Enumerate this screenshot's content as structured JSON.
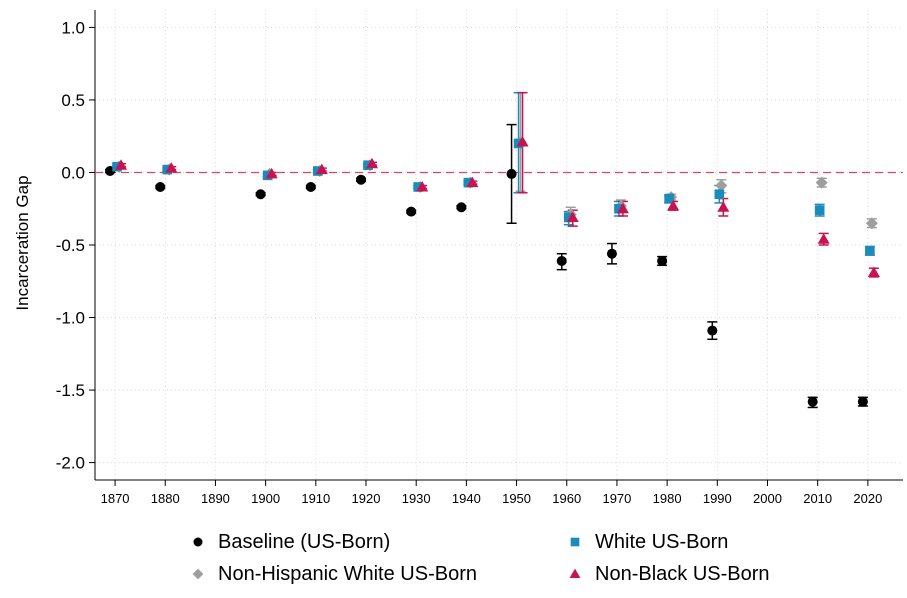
{
  "chart_data": {
    "type": "scatter",
    "title": "",
    "xlabel": "",
    "ylabel": "Incarceration Gap",
    "xlim": [
      1866,
      2027
    ],
    "ylim": [
      -2.12,
      1.12
    ],
    "grid": true,
    "legend_position": "bottom",
    "reference_line": {
      "y": 0,
      "style": "dashed",
      "color": "#e0446b"
    },
    "x_ticks": [
      1870,
      1880,
      1890,
      1900,
      1910,
      1920,
      1930,
      1940,
      1950,
      1960,
      1970,
      1980,
      1990,
      2000,
      2010,
      2020
    ],
    "x_tick_labels": [
      "1870",
      "1880",
      "1890",
      "1900",
      "1910",
      "1920",
      "1930",
      "1940",
      "1950",
      "1960",
      "1970",
      "1980",
      "1990",
      "2000",
      "2010",
      "2020"
    ],
    "y_ticks": [
      1.0,
      0.5,
      0.0,
      -0.5,
      -1.0,
      -1.5,
      -2.0
    ],
    "y_tick_labels": [
      "1.0",
      "0.5",
      "0.0",
      "-0.5",
      "-1.0",
      "-1.5",
      "-2.0"
    ],
    "series": [
      {
        "name": "Baseline (US-Born)",
        "marker": "circle",
        "color": "#000000",
        "points": [
          {
            "x": 1870,
            "y": 0.01,
            "lo": 0.0,
            "hi": 0.02
          },
          {
            "x": 1880,
            "y": -0.1,
            "lo": -0.11,
            "hi": -0.09
          },
          {
            "x": 1900,
            "y": -0.15,
            "lo": -0.16,
            "hi": -0.14
          },
          {
            "x": 1910,
            "y": -0.1,
            "lo": -0.11,
            "hi": -0.09
          },
          {
            "x": 1920,
            "y": -0.05,
            "lo": -0.06,
            "hi": -0.04
          },
          {
            "x": 1930,
            "y": -0.27,
            "lo": -0.28,
            "hi": -0.26
          },
          {
            "x": 1940,
            "y": -0.24,
            "lo": -0.25,
            "hi": -0.23
          },
          {
            "x": 1950,
            "y": -0.01,
            "lo": -0.35,
            "hi": 0.33
          },
          {
            "x": 1960,
            "y": -0.61,
            "lo": -0.67,
            "hi": -0.56
          },
          {
            "x": 1970,
            "y": -0.56,
            "lo": -0.63,
            "hi": -0.49
          },
          {
            "x": 1980,
            "y": -0.61,
            "lo": -0.64,
            "hi": -0.58
          },
          {
            "x": 1990,
            "y": -1.09,
            "lo": -1.15,
            "hi": -1.03
          },
          {
            "x": 2010,
            "y": -1.58,
            "lo": -1.62,
            "hi": -1.55
          },
          {
            "x": 2020,
            "y": -1.58,
            "lo": -1.61,
            "hi": -1.55
          }
        ]
      },
      {
        "name": "Non-Hispanic White US-Born",
        "marker": "diamond",
        "color": "#9e9e9e",
        "points": [
          {
            "x": 1870,
            "y": 0.04,
            "lo": 0.03,
            "hi": 0.05
          },
          {
            "x": 1880,
            "y": 0.02,
            "lo": 0.01,
            "hi": 0.03
          },
          {
            "x": 1900,
            "y": -0.01,
            "lo": -0.02,
            "hi": 0.0
          },
          {
            "x": 1910,
            "y": 0.01,
            "lo": 0.0,
            "hi": 0.02
          },
          {
            "x": 1920,
            "y": 0.05,
            "lo": 0.04,
            "hi": 0.06
          },
          {
            "x": 1930,
            "y": -0.1,
            "lo": -0.11,
            "hi": -0.09
          },
          {
            "x": 1940,
            "y": -0.07,
            "lo": -0.08,
            "hi": -0.06
          },
          {
            "x": 1950,
            "y": 0.21,
            "lo": -0.13,
            "hi": 0.55
          },
          {
            "x": 1960,
            "y": -0.29,
            "lo": -0.33,
            "hi": -0.24
          },
          {
            "x": 1970,
            "y": -0.23,
            "lo": -0.27,
            "hi": -0.19
          },
          {
            "x": 1980,
            "y": -0.17,
            "lo": -0.19,
            "hi": -0.15
          },
          {
            "x": 1990,
            "y": -0.09,
            "lo": -0.14,
            "hi": -0.05
          },
          {
            "x": 2010,
            "y": -0.07,
            "lo": -0.1,
            "hi": -0.04
          },
          {
            "x": 2020,
            "y": -0.35,
            "lo": -0.38,
            "hi": -0.32
          }
        ]
      },
      {
        "name": "White US-Born",
        "marker": "square",
        "color": "#1a8bba",
        "points": [
          {
            "x": 1870,
            "y": 0.04,
            "lo": 0.03,
            "hi": 0.05
          },
          {
            "x": 1880,
            "y": 0.02,
            "lo": 0.01,
            "hi": 0.03
          },
          {
            "x": 1900,
            "y": -0.02,
            "lo": -0.03,
            "hi": -0.01
          },
          {
            "x": 1910,
            "y": 0.01,
            "lo": 0.0,
            "hi": 0.02
          },
          {
            "x": 1920,
            "y": 0.05,
            "lo": 0.04,
            "hi": 0.06
          },
          {
            "x": 1930,
            "y": -0.1,
            "lo": -0.11,
            "hi": -0.09
          },
          {
            "x": 1940,
            "y": -0.07,
            "lo": -0.08,
            "hi": -0.06
          },
          {
            "x": 1950,
            "y": 0.2,
            "lo": -0.14,
            "hi": 0.55
          },
          {
            "x": 1960,
            "y": -0.31,
            "lo": -0.36,
            "hi": -0.27
          },
          {
            "x": 1970,
            "y": -0.25,
            "lo": -0.3,
            "hi": -0.2
          },
          {
            "x": 1980,
            "y": -0.18,
            "lo": -0.21,
            "hi": -0.16
          },
          {
            "x": 1990,
            "y": -0.15,
            "lo": -0.21,
            "hi": -0.09
          },
          {
            "x": 2010,
            "y": -0.26,
            "lo": -0.3,
            "hi": -0.22
          },
          {
            "x": 2020,
            "y": -0.54,
            "lo": -0.57,
            "hi": -0.51
          }
        ]
      },
      {
        "name": "Non-Black US-Born",
        "marker": "triangle",
        "color": "#c8144e",
        "points": [
          {
            "x": 1870,
            "y": 0.05,
            "lo": 0.04,
            "hi": 0.06
          },
          {
            "x": 1880,
            "y": 0.03,
            "lo": 0.02,
            "hi": 0.04
          },
          {
            "x": 1900,
            "y": -0.01,
            "lo": -0.02,
            "hi": 0.0
          },
          {
            "x": 1910,
            "y": 0.02,
            "lo": 0.01,
            "hi": 0.03
          },
          {
            "x": 1920,
            "y": 0.06,
            "lo": 0.05,
            "hi": 0.07
          },
          {
            "x": 1930,
            "y": -0.1,
            "lo": -0.11,
            "hi": -0.09
          },
          {
            "x": 1940,
            "y": -0.07,
            "lo": -0.08,
            "hi": -0.06
          },
          {
            "x": 1950,
            "y": 0.21,
            "lo": -0.14,
            "hi": 0.55
          },
          {
            "x": 1960,
            "y": -0.31,
            "lo": -0.37,
            "hi": -0.26
          },
          {
            "x": 1970,
            "y": -0.25,
            "lo": -0.3,
            "hi": -0.2
          },
          {
            "x": 1980,
            "y": -0.23,
            "lo": -0.26,
            "hi": -0.2
          },
          {
            "x": 1990,
            "y": -0.24,
            "lo": -0.3,
            "hi": -0.18
          },
          {
            "x": 2010,
            "y": -0.46,
            "lo": -0.5,
            "hi": -0.42
          },
          {
            "x": 2020,
            "y": -0.69,
            "lo": -0.72,
            "hi": -0.66
          }
        ]
      }
    ]
  }
}
